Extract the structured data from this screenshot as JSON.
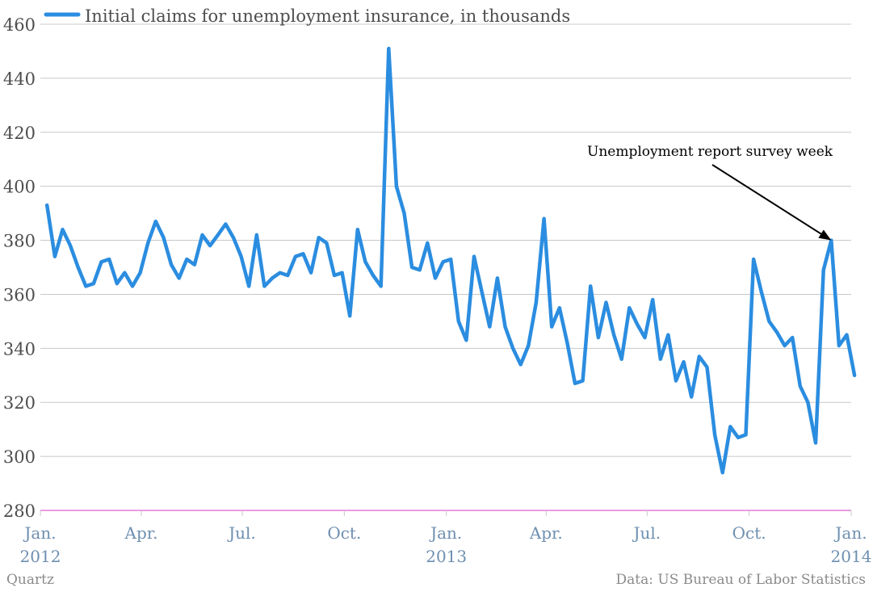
{
  "chart_data": {
    "type": "line",
    "series": [
      {
        "name": "Initial claims for unemployment insurance, in thousands",
        "color": "#2b8de0",
        "x": [
          "2012-01-07",
          "2012-01-14",
          "2012-01-21",
          "2012-01-28",
          "2012-02-04",
          "2012-02-11",
          "2012-02-18",
          "2012-02-25",
          "2012-03-03",
          "2012-03-10",
          "2012-03-17",
          "2012-03-24",
          "2012-03-31",
          "2012-04-07",
          "2012-04-14",
          "2012-04-21",
          "2012-04-28",
          "2012-05-05",
          "2012-05-12",
          "2012-05-19",
          "2012-05-26",
          "2012-06-02",
          "2012-06-09",
          "2012-06-16",
          "2012-06-23",
          "2012-06-30",
          "2012-07-07",
          "2012-07-14",
          "2012-07-21",
          "2012-07-28",
          "2012-08-04",
          "2012-08-11",
          "2012-08-18",
          "2012-08-25",
          "2012-09-01",
          "2012-09-08",
          "2012-09-15",
          "2012-09-22",
          "2012-09-29",
          "2012-10-06",
          "2012-10-13",
          "2012-10-20",
          "2012-10-27",
          "2012-11-03",
          "2012-11-10",
          "2012-11-17",
          "2012-11-24",
          "2012-12-01",
          "2012-12-08",
          "2012-12-15",
          "2012-12-22",
          "2012-12-29",
          "2013-01-05",
          "2013-01-12",
          "2013-01-19",
          "2013-01-26",
          "2013-02-02",
          "2013-02-09",
          "2013-02-16",
          "2013-02-23",
          "2013-03-02",
          "2013-03-09",
          "2013-03-16",
          "2013-03-23",
          "2013-03-30",
          "2013-04-06",
          "2013-04-13",
          "2013-04-20",
          "2013-04-27",
          "2013-05-04",
          "2013-05-11",
          "2013-05-18",
          "2013-05-25",
          "2013-06-01",
          "2013-06-08",
          "2013-06-15",
          "2013-06-22",
          "2013-06-29",
          "2013-07-06",
          "2013-07-13",
          "2013-07-20",
          "2013-07-27",
          "2013-08-03",
          "2013-08-10",
          "2013-08-17",
          "2013-08-24",
          "2013-08-31",
          "2013-09-07",
          "2013-09-14",
          "2013-09-21",
          "2013-09-28",
          "2013-10-05",
          "2013-10-12",
          "2013-10-19",
          "2013-10-26",
          "2013-11-02",
          "2013-11-09",
          "2013-11-16",
          "2013-11-23",
          "2013-11-30",
          "2013-12-07",
          "2013-12-14",
          "2013-12-21",
          "2013-12-28",
          "2014-01-04"
        ],
        "values": [
          393,
          374,
          384,
          378,
          370,
          363,
          364,
          372,
          373,
          364,
          368,
          363,
          368,
          379,
          387,
          381,
          371,
          366,
          373,
          371,
          382,
          378,
          382,
          386,
          381,
          374,
          363,
          382,
          363,
          366,
          368,
          367,
          374,
          375,
          368,
          381,
          379,
          367,
          368,
          352,
          384,
          372,
          367,
          363,
          451,
          400,
          390,
          370,
          369,
          379,
          366,
          372,
          373,
          350,
          343,
          374,
          361,
          348,
          366,
          348,
          340,
          334,
          341,
          357,
          388,
          348,
          355,
          342,
          327,
          328,
          363,
          344,
          357,
          345,
          336,
          355,
          349,
          344,
          358,
          336,
          345,
          328,
          335,
          322,
          337,
          333,
          308,
          294,
          311,
          307,
          308,
          373,
          361,
          350,
          346,
          341,
          344,
          326,
          320,
          305,
          369,
          380,
          341,
          345,
          330
        ]
      }
    ],
    "ylim": [
      280,
      460
    ],
    "yticks": [
      280,
      300,
      320,
      340,
      360,
      380,
      400,
      420,
      440,
      460
    ],
    "xlim": [
      "2012-01-01",
      "2014-01-01"
    ],
    "xticks": [
      {
        "date": "2012-01-01",
        "label": "Jan.",
        "year": "2012"
      },
      {
        "date": "2012-04-01",
        "label": "Apr.",
        "year": ""
      },
      {
        "date": "2012-07-01",
        "label": "Jul.",
        "year": ""
      },
      {
        "date": "2012-10-01",
        "label": "Oct.",
        "year": ""
      },
      {
        "date": "2013-01-01",
        "label": "Jan.",
        "year": "2013"
      },
      {
        "date": "2013-04-01",
        "label": "Apr.",
        "year": ""
      },
      {
        "date": "2013-07-01",
        "label": "Jul.",
        "year": ""
      },
      {
        "date": "2013-10-01",
        "label": "Oct.",
        "year": ""
      },
      {
        "date": "2014-01-01",
        "label": "Jan.",
        "year": "2014"
      }
    ],
    "grid": true,
    "legend": "top-left",
    "annotation": {
      "text": "Unemployment report survey week",
      "x": "2013-12-14",
      "y": 380
    },
    "colors": {
      "line": "#2b8de0",
      "grid": "#c8c8c8",
      "baseline": "#e37ad8",
      "tick_x": "#6e8fb0",
      "tick_y": "#4d4d4d"
    }
  },
  "footer": {
    "credit": "Quartz",
    "source": "Data: US Bureau of Labor Statistics"
  }
}
